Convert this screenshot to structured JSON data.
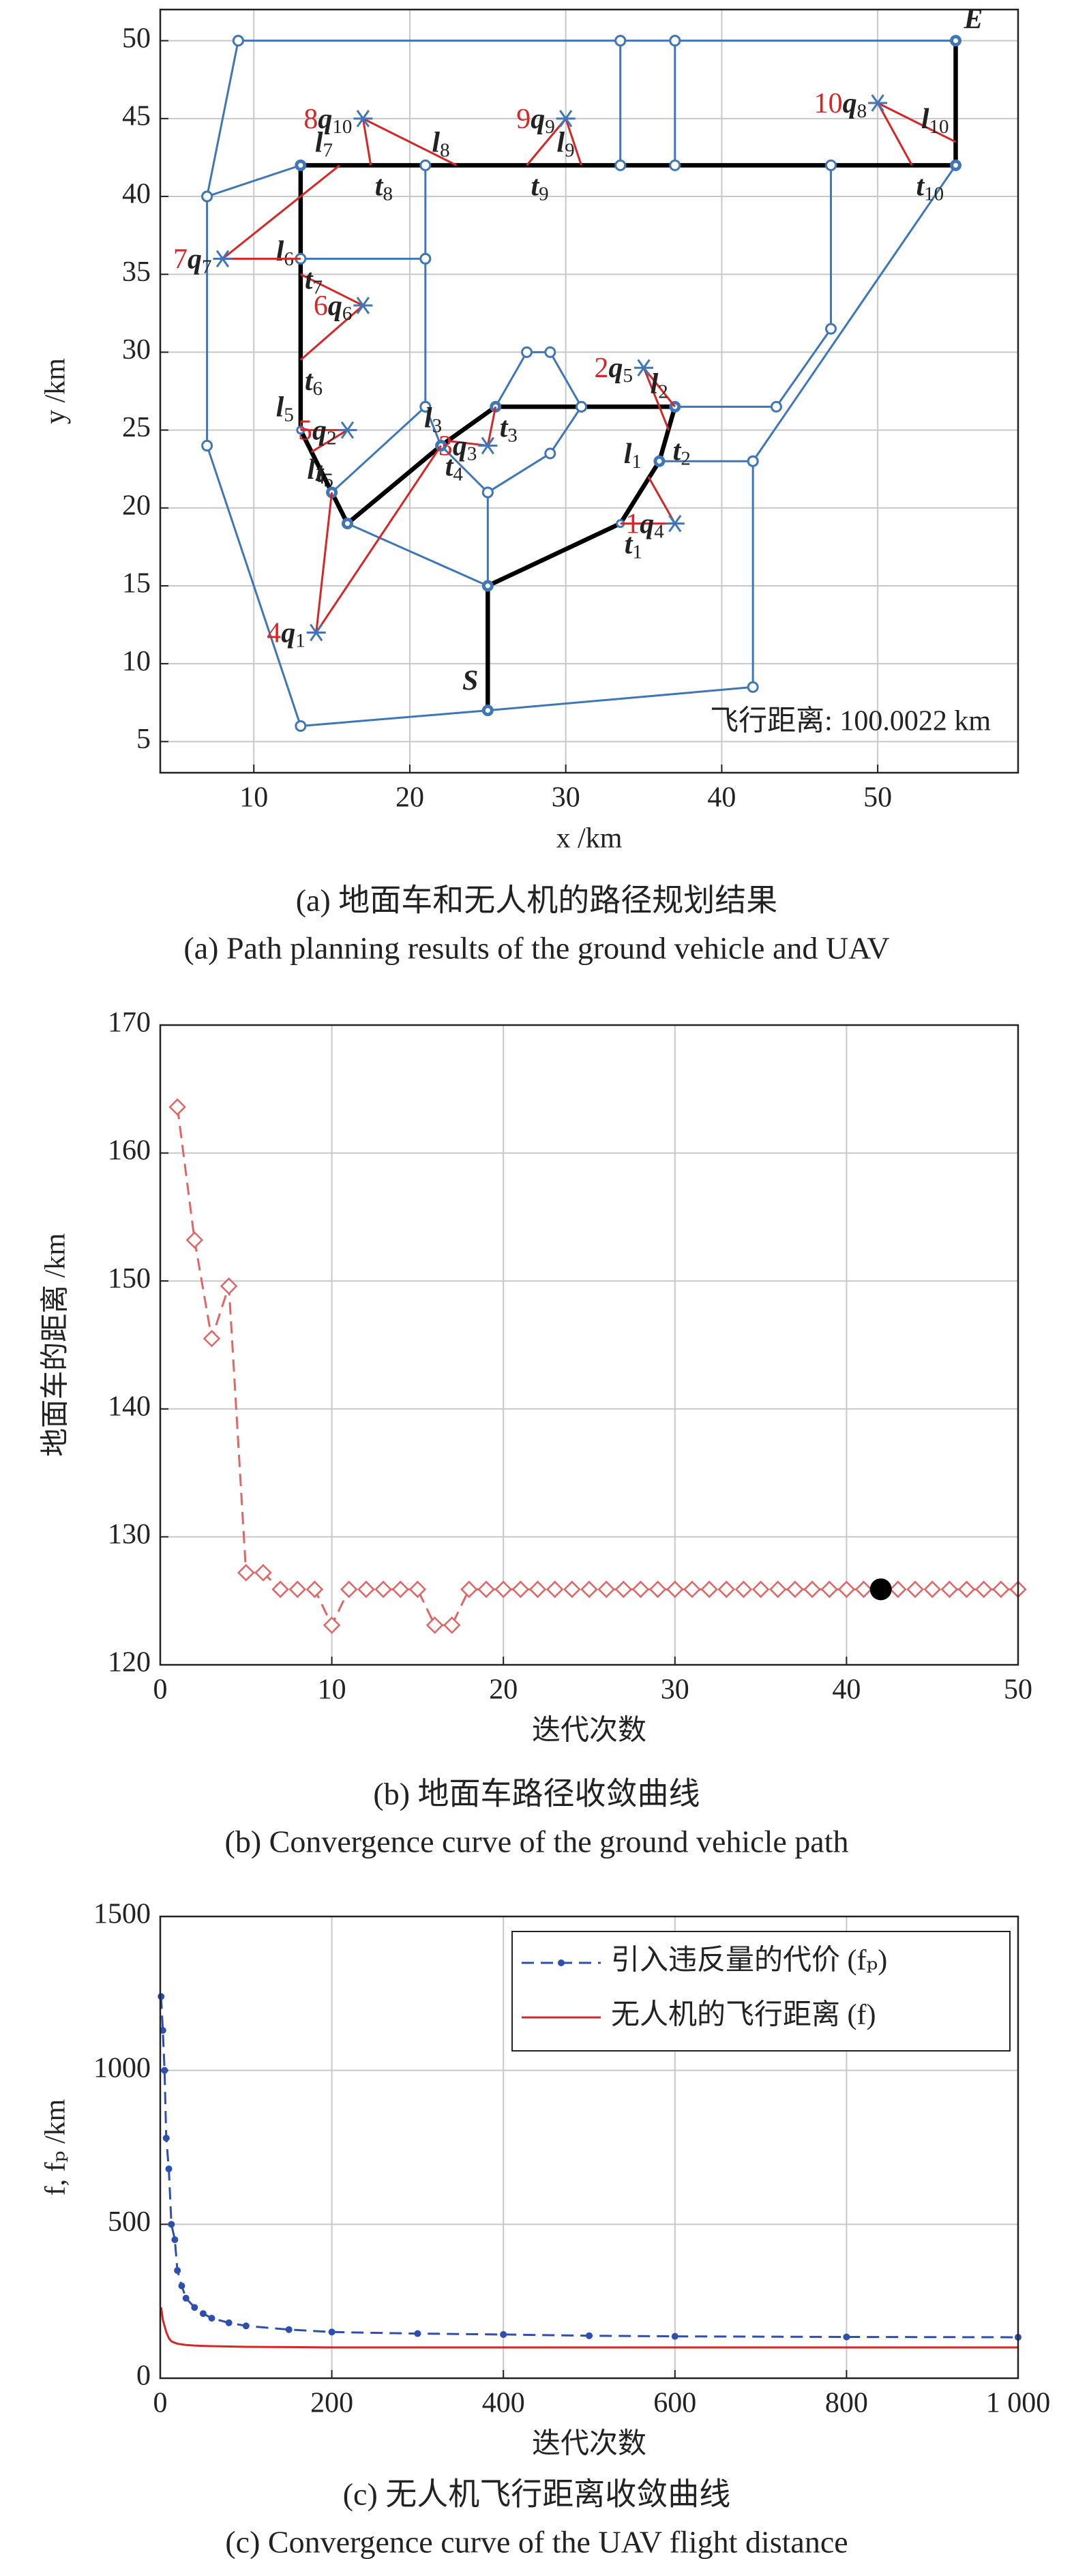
{
  "chart_data": [
    {
      "type": "network",
      "xlabel": "x /km",
      "ylabel": "y /km",
      "xlim": [
        4,
        59
      ],
      "ylim": [
        3,
        52
      ],
      "xticks": [
        10,
        20,
        30,
        40,
        50
      ],
      "yticks": [
        5,
        10,
        15,
        20,
        25,
        30,
        35,
        40,
        45,
        50
      ],
      "grid": true,
      "road_color": "#3f76b8",
      "route_color": "#000000",
      "uav_color": "#d62728",
      "roads": [
        {
          "x": [
            9,
            33.5,
            37,
            55
          ],
          "y": [
            50,
            50,
            50,
            50
          ]
        },
        {
          "x": [
            9,
            7,
            7,
            13,
            25,
            42,
            42,
            36
          ],
          "y": [
            50,
            40,
            24,
            6,
            7,
            8.5,
            23,
            23
          ]
        },
        {
          "x": [
            7,
            13
          ],
          "y": [
            40,
            42
          ]
        },
        {
          "x": [
            33.5,
            33.5
          ],
          "y": [
            50,
            42
          ]
        },
        {
          "x": [
            37,
            37
          ],
          "y": [
            50,
            42
          ]
        },
        {
          "x": [
            13,
            21
          ],
          "y": [
            36,
            36
          ]
        },
        {
          "x": [
            21,
            21,
            21
          ],
          "y": [
            42,
            36,
            26.5
          ]
        },
        {
          "x": [
            15,
            21,
            22
          ],
          "y": [
            21,
            26.5,
            24
          ]
        },
        {
          "x": [
            16,
            25,
            25,
            22
          ],
          "y": [
            19,
            15,
            21,
            24
          ]
        },
        {
          "x": [
            25,
            29,
            31
          ],
          "y": [
            21,
            23.5,
            26.5
          ]
        },
        {
          "x": [
            25.5,
            27.5,
            29,
            31
          ],
          "y": [
            26.5,
            30,
            30,
            26.5
          ]
        },
        {
          "x": [
            37,
            43.5,
            47,
            47
          ],
          "y": [
            26.5,
            26.5,
            31.5,
            42
          ]
        },
        {
          "x": [
            55,
            42
          ],
          "y": [
            42,
            23
          ]
        }
      ],
      "route": {
        "x": [
          25,
          25,
          33.5,
          36,
          37,
          25.5,
          22,
          16,
          15,
          13,
          13,
          55,
          55
        ],
        "y": [
          7,
          15,
          19,
          23,
          26.5,
          26.5,
          24,
          19,
          21,
          25,
          42,
          42,
          50
        ]
      },
      "targets": [
        {
          "order": "1",
          "q": [
            "q",
            "4"
          ],
          "x": 37,
          "y": 19,
          "t": {
            "label": [
              "t",
              "1"
            ],
            "x": 33.5,
            "y": 19
          },
          "l": {
            "label": [
              "l",
              "1"
            ],
            "x": 35.3,
            "y": 22
          }
        },
        {
          "order": "2",
          "q": [
            "q",
            "5"
          ],
          "x": 35,
          "y": 29,
          "t": {
            "label": [
              "t",
              "2"
            ],
            "x": 36.6,
            "y": 25
          },
          "l": {
            "label": [
              "l",
              "2"
            ],
            "x": 37,
            "y": 26.5
          }
        },
        {
          "order": "3",
          "q": [
            "q",
            "3"
          ],
          "x": 25,
          "y": 24,
          "t": {
            "label": [
              "t",
              "3"
            ],
            "x": 25.5,
            "y": 26.5
          },
          "l": {
            "label": [
              "l",
              "3"
            ],
            "x": 22.5,
            "y": 24.3
          }
        },
        {
          "order": "4",
          "q": [
            "q",
            "1"
          ],
          "x": 14,
          "y": 12,
          "t": {
            "label": [
              "t",
              "4"
            ],
            "x": 22,
            "y": 24
          },
          "l": {
            "label": [
              "l",
              "4"
            ],
            "x": 15,
            "y": 21
          }
        },
        {
          "order": "5",
          "q": [
            "q",
            "2"
          ],
          "x": 16,
          "y": 25,
          "t": {
            "label": [
              "t",
              "5"
            ],
            "x": 13.7,
            "y": 23.6
          },
          "l": {
            "label": [
              "l",
              "5"
            ],
            "x": 13,
            "y": 25
          }
        },
        {
          "order": "6",
          "q": [
            "q",
            "6"
          ],
          "x": 17,
          "y": 33,
          "t": {
            "label": [
              "t",
              "6"
            ],
            "x": 13,
            "y": 29.5
          },
          "l": {
            "label": [
              "l",
              "6"
            ],
            "x": 13,
            "y": 35
          }
        },
        {
          "order": "7",
          "q": [
            "q",
            "7"
          ],
          "x": 8,
          "y": 36,
          "t": {
            "label": [
              "t",
              "7"
            ],
            "x": 13,
            "y": 36
          },
          "l": {
            "label": [
              "l",
              "7"
            ],
            "x": 15.5,
            "y": 42
          }
        },
        {
          "order": "8",
          "q": [
            "q",
            "10"
          ],
          "x": 17,
          "y": 45,
          "t": {
            "label": [
              "t",
              "8"
            ],
            "x": 17.5,
            "y": 42
          },
          "l": {
            "label": [
              "l",
              "8"
            ],
            "x": 23,
            "y": 42
          }
        },
        {
          "order": "9",
          "q": [
            "q",
            "9"
          ],
          "x": 30,
          "y": 45,
          "t": {
            "label": [
              "t",
              "9"
            ],
            "x": 27.5,
            "y": 42
          },
          "l": {
            "label": [
              "l",
              "9"
            ],
            "x": 31,
            "y": 42
          }
        },
        {
          "order": "10",
          "q": [
            "q",
            "8"
          ],
          "x": 50,
          "y": 46,
          "t": {
            "label": [
              "t",
              "10"
            ],
            "x": 52.2,
            "y": 42
          },
          "l": {
            "label": [
              "l",
              "10"
            ],
            "x": 55,
            "y": 43.5
          }
        }
      ],
      "start": {
        "label": "S",
        "x": 25,
        "y": 7
      },
      "end": {
        "label": "E",
        "x": 55,
        "y": 50
      },
      "annotation": "飞行距离: 100.0022 km",
      "caption": [
        "(a) 地面车和无人机的路径规划结果",
        "(a) Path planning results of the ground vehicle and UAV"
      ]
    },
    {
      "type": "line",
      "xlabel": "迭代次数",
      "ylabel": "地面车的距离 /km",
      "xlim": [
        0,
        50
      ],
      "ylim": [
        120,
        170
      ],
      "xticks": [
        0,
        10,
        20,
        30,
        40,
        50
      ],
      "yticks": [
        120,
        130,
        140,
        150,
        160,
        170
      ],
      "grid": true,
      "x": [
        1,
        2,
        3,
        4,
        5,
        6,
        7,
        8,
        9,
        10,
        11,
        12,
        13,
        14,
        15,
        16,
        17,
        18,
        19,
        20,
        21,
        22,
        23,
        24,
        25,
        26,
        27,
        28,
        29,
        30,
        31,
        32,
        33,
        34,
        35,
        36,
        37,
        38,
        39,
        40,
        41,
        42,
        43,
        44,
        45,
        46,
        47,
        48,
        49,
        50
      ],
      "series": [
        {
          "color": "#e06666",
          "linestyle": "dashed",
          "marker": "diamond",
          "values": [
            163.6,
            153.2,
            145.5,
            149.6,
            127.2,
            127.2,
            125.9,
            125.9,
            125.9,
            123.1,
            125.9,
            125.9,
            125.9,
            125.9,
            125.9,
            123.1,
            123.1,
            125.9,
            125.9,
            125.9,
            125.9,
            125.9,
            125.9,
            125.9,
            125.9,
            125.9,
            125.9,
            125.9,
            125.9,
            125.9,
            125.9,
            125.9,
            125.9,
            125.9,
            125.9,
            125.9,
            125.9,
            125.9,
            125.9,
            125.9,
            125.9,
            125.9,
            125.9,
            125.9,
            125.9,
            125.9,
            125.9,
            125.9,
            125.9,
            125.9
          ]
        }
      ],
      "highlight": {
        "x": 42,
        "y": 125.9,
        "color": "#000000"
      },
      "caption": [
        "(b) 地面车路径收敛曲线",
        "(b) Convergence curve of the ground vehicle path"
      ]
    },
    {
      "type": "line",
      "xlabel": "迭代次数",
      "ylabel": "f, fₚ /km",
      "xlim": [
        0,
        1000
      ],
      "ylim": [
        0,
        1500
      ],
      "xticks": [
        0,
        200,
        400,
        600,
        800,
        {
          "value": 1000,
          "label": "1 000"
        }
      ],
      "yticks": [
        0,
        500,
        1000,
        1500
      ],
      "grid": true,
      "legend": "upper right",
      "x": [
        1,
        3,
        5,
        7,
        10,
        13,
        17,
        20,
        25,
        30,
        40,
        50,
        60,
        80,
        100,
        150,
        200,
        300,
        400,
        500,
        600,
        800,
        1000
      ],
      "series": [
        {
          "name": "引入违反量的代价 (fₚ)",
          "color": "#2f4fb0",
          "linestyle": "dashed",
          "marker": "dot",
          "values": [
            1240,
            1130,
            1000,
            780,
            680,
            500,
            450,
            350,
            300,
            260,
            230,
            210,
            195,
            180,
            170,
            158,
            150,
            145,
            142,
            138,
            136,
            134,
            133
          ]
        },
        {
          "name": "无人机的飞行距离 (f)",
          "color": "#d62728",
          "linestyle": "solid",
          "marker": "none",
          "values": [
            230,
            190,
            170,
            150,
            130,
            120,
            115,
            112,
            110,
            108,
            106,
            105,
            104,
            103,
            102,
            101,
            100,
            100,
            100,
            100,
            100,
            100,
            100
          ]
        }
      ],
      "caption": [
        "(c) 无人机飞行距离收敛曲线",
        "(c) Convergence curve of the UAV flight distance"
      ]
    }
  ]
}
